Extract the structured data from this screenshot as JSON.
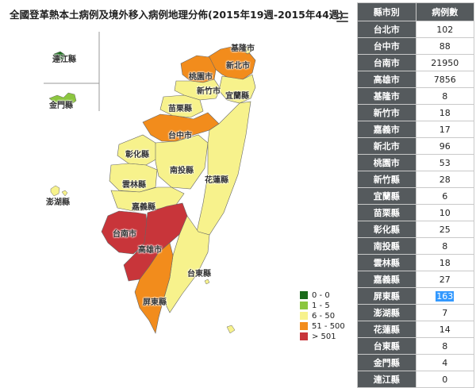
{
  "title": "全國登革熱本土病例及境外移入病例地理分佈(2015年19週-2015年44週)",
  "colors": {
    "level0": "#1a6b1a",
    "level1": "#8cc63f",
    "level2": "#f7f28c",
    "level3": "#f28c1c",
    "level4": "#c8353a",
    "table_header": "#555a5d"
  },
  "legend": [
    {
      "label": "0 - 0",
      "color": "#1a6b1a"
    },
    {
      "label": "1 - 5",
      "color": "#8cc63f"
    },
    {
      "label": "6 - 50",
      "color": "#f7f28c"
    },
    {
      "label": "51 - 500",
      "color": "#f28c1c"
    },
    {
      "label": "> 501",
      "color": "#c8353a"
    }
  ],
  "map_labels": {
    "lienchiang": "連江縣",
    "kinmen": "金門縣",
    "keelung": "基隆市",
    "new_taipei": "新北市",
    "taoyuan": "桃園市",
    "hsinchu_city": "新竹市",
    "yilan": "宜蘭縣",
    "miaoli": "苗栗縣",
    "taichung": "台中市",
    "changhua": "彰化縣",
    "nantou": "南投縣",
    "yunlin": "雲林縣",
    "hualien": "花蓮縣",
    "chiayi": "嘉義縣",
    "penghu": "澎湖縣",
    "tainan": "台南市",
    "kaohsiung": "高雄市",
    "taitung": "台東縣",
    "pingtung": "屏東縣"
  },
  "table": {
    "header_county": "縣市別",
    "header_cases": "病例數",
    "rows": [
      {
        "county": "台北市",
        "cases": "102"
      },
      {
        "county": "台中市",
        "cases": "88"
      },
      {
        "county": "台南市",
        "cases": "21950"
      },
      {
        "county": "高雄市",
        "cases": "7856"
      },
      {
        "county": "基隆市",
        "cases": "8"
      },
      {
        "county": "新竹市",
        "cases": "18"
      },
      {
        "county": "嘉義市",
        "cases": "17"
      },
      {
        "county": "新北市",
        "cases": "96"
      },
      {
        "county": "桃園市",
        "cases": "53"
      },
      {
        "county": "新竹縣",
        "cases": "28"
      },
      {
        "county": "宜蘭縣",
        "cases": "6"
      },
      {
        "county": "苗栗縣",
        "cases": "10"
      },
      {
        "county": "彰化縣",
        "cases": "25"
      },
      {
        "county": "南投縣",
        "cases": "8"
      },
      {
        "county": "雲林縣",
        "cases": "18"
      },
      {
        "county": "嘉義縣",
        "cases": "27"
      },
      {
        "county": "屏東縣",
        "cases": "163"
      },
      {
        "county": "澎湖縣",
        "cases": "7"
      },
      {
        "county": "花蓮縣",
        "cases": "14"
      },
      {
        "county": "台東縣",
        "cases": "8"
      },
      {
        "county": "金門縣",
        "cases": "4"
      },
      {
        "county": "連江縣",
        "cases": "0"
      }
    ]
  }
}
